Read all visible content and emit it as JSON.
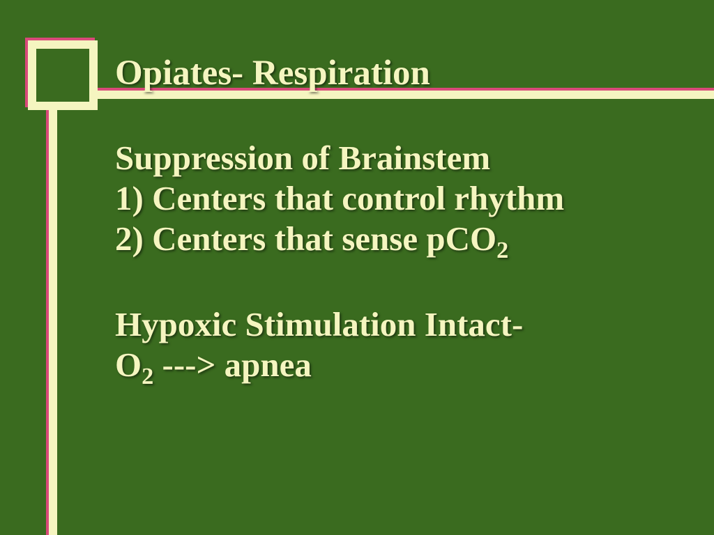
{
  "slide": {
    "background_color": "#3a6b1f",
    "text_color": "#f5f5c0",
    "accent_color": "#d94a7a",
    "decoration_border_width": 12,
    "font_family": "Times New Roman",
    "title_fontsize": 51,
    "body_fontsize": 49,
    "title": "Opiates- Respiration",
    "body": {
      "line1": "Suppression of Brainstem",
      "line2": "1) Centers that control rhythm",
      "line3_prefix": "2) Centers that sense pCO",
      "line3_sub": "2",
      "line4": "Hypoxic Stimulation Intact-",
      "line5_prefix": "O",
      "line5_sub": "2",
      "line5_suffix": " ---> apnea"
    }
  }
}
